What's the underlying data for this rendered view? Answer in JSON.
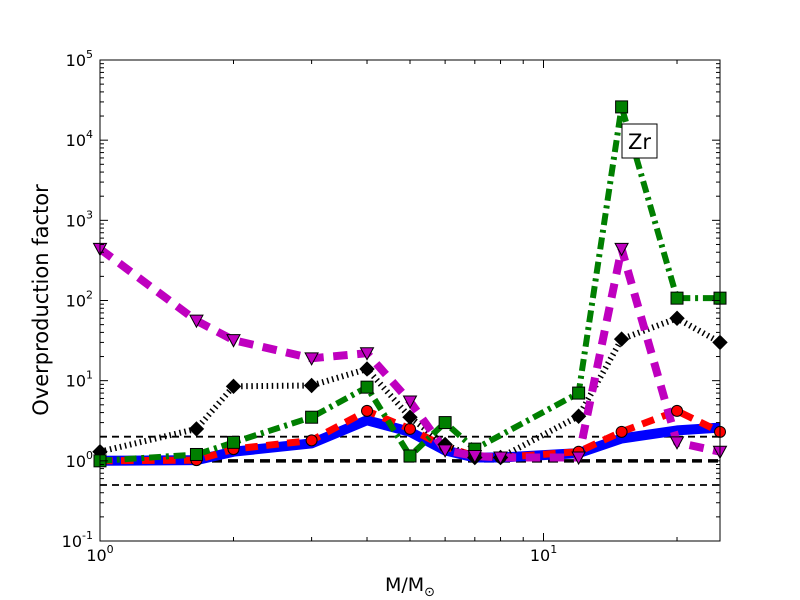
{
  "chart_data": {
    "type": "line",
    "xlabel": "M/M",
    "xlabel_sub": "⊙",
    "ylabel": "Overproduction factor",
    "annotation": "Zr",
    "x_scale": "log",
    "y_scale": "log",
    "xlim": [
      1,
      25
    ],
    "ylim": [
      0.1,
      100000
    ],
    "x_ticks": [
      {
        "value": 1,
        "base": "10",
        "exp": "0"
      },
      {
        "value": 10,
        "base": "10",
        "exp": "1"
      }
    ],
    "y_ticks": [
      {
        "value": 0.1,
        "base": "10",
        "exp": "-1"
      },
      {
        "value": 1,
        "base": "10",
        "exp": "0"
      },
      {
        "value": 10,
        "base": "10",
        "exp": "1"
      },
      {
        "value": 100,
        "base": "10",
        "exp": "2"
      },
      {
        "value": 1000,
        "base": "10",
        "exp": "3"
      },
      {
        "value": 10000,
        "base": "10",
        "exp": "4"
      },
      {
        "value": 100000,
        "base": "10",
        "exp": "5"
      }
    ],
    "reference_lines": [
      {
        "y": 2.0,
        "style": "thin-dashed"
      },
      {
        "y": 1.0,
        "style": "thick-dashed"
      },
      {
        "y": 0.5,
        "style": "thin-dashed"
      }
    ],
    "series": [
      {
        "color": "#0000ff",
        "dash": "solid",
        "width": 10,
        "marker": "none",
        "x": [
          1,
          1.65,
          2,
          3,
          4,
          5,
          6,
          7,
          8,
          12,
          15,
          20,
          25
        ],
        "y": [
          1.0,
          1.02,
          1.3,
          1.65,
          3.2,
          2.3,
          1.35,
          1.1,
          1.1,
          1.25,
          1.9,
          2.4,
          2.6
        ]
      },
      {
        "color": "#ff0000",
        "dash": "dashed",
        "width": 7,
        "marker": "circle",
        "x": [
          1,
          1.65,
          2,
          3,
          4,
          5,
          6,
          7,
          8,
          12,
          15,
          20,
          25
        ],
        "y": [
          1.0,
          1.02,
          1.4,
          1.8,
          4.2,
          2.5,
          1.5,
          1.15,
          1.1,
          1.3,
          2.3,
          4.2,
          2.3
        ]
      },
      {
        "color": "#000000",
        "dash": "dotted",
        "width": 6,
        "marker": "diamond",
        "x": [
          1,
          1.65,
          2,
          3,
          4,
          5,
          6,
          7,
          8,
          12,
          15,
          20,
          25
        ],
        "y": [
          1.3,
          2.5,
          8.5,
          8.7,
          14,
          3.5,
          1.6,
          1.1,
          1.1,
          3.6,
          33,
          60,
          30
        ]
      },
      {
        "color": "#007f00",
        "dash": "dashdot",
        "width": 6,
        "marker": "square",
        "x": [
          1,
          1.65,
          2,
          3,
          4,
          5,
          6,
          7,
          12,
          15,
          20,
          25
        ],
        "y": [
          1.0,
          1.2,
          1.7,
          3.5,
          8.3,
          1.15,
          3.0,
          1.4,
          7.0,
          26000,
          107,
          107
        ]
      },
      {
        "color": "#bf00bf",
        "dash": "dashed",
        "width": 8,
        "marker": "triangle",
        "x": [
          1,
          1.65,
          2,
          3,
          4,
          5,
          6,
          7,
          8,
          12,
          15,
          20,
          25
        ],
        "y": [
          440,
          56,
          32,
          19,
          22,
          5.5,
          1.35,
          1.15,
          1.1,
          1.1,
          440,
          1.7,
          1.3
        ]
      }
    ]
  }
}
